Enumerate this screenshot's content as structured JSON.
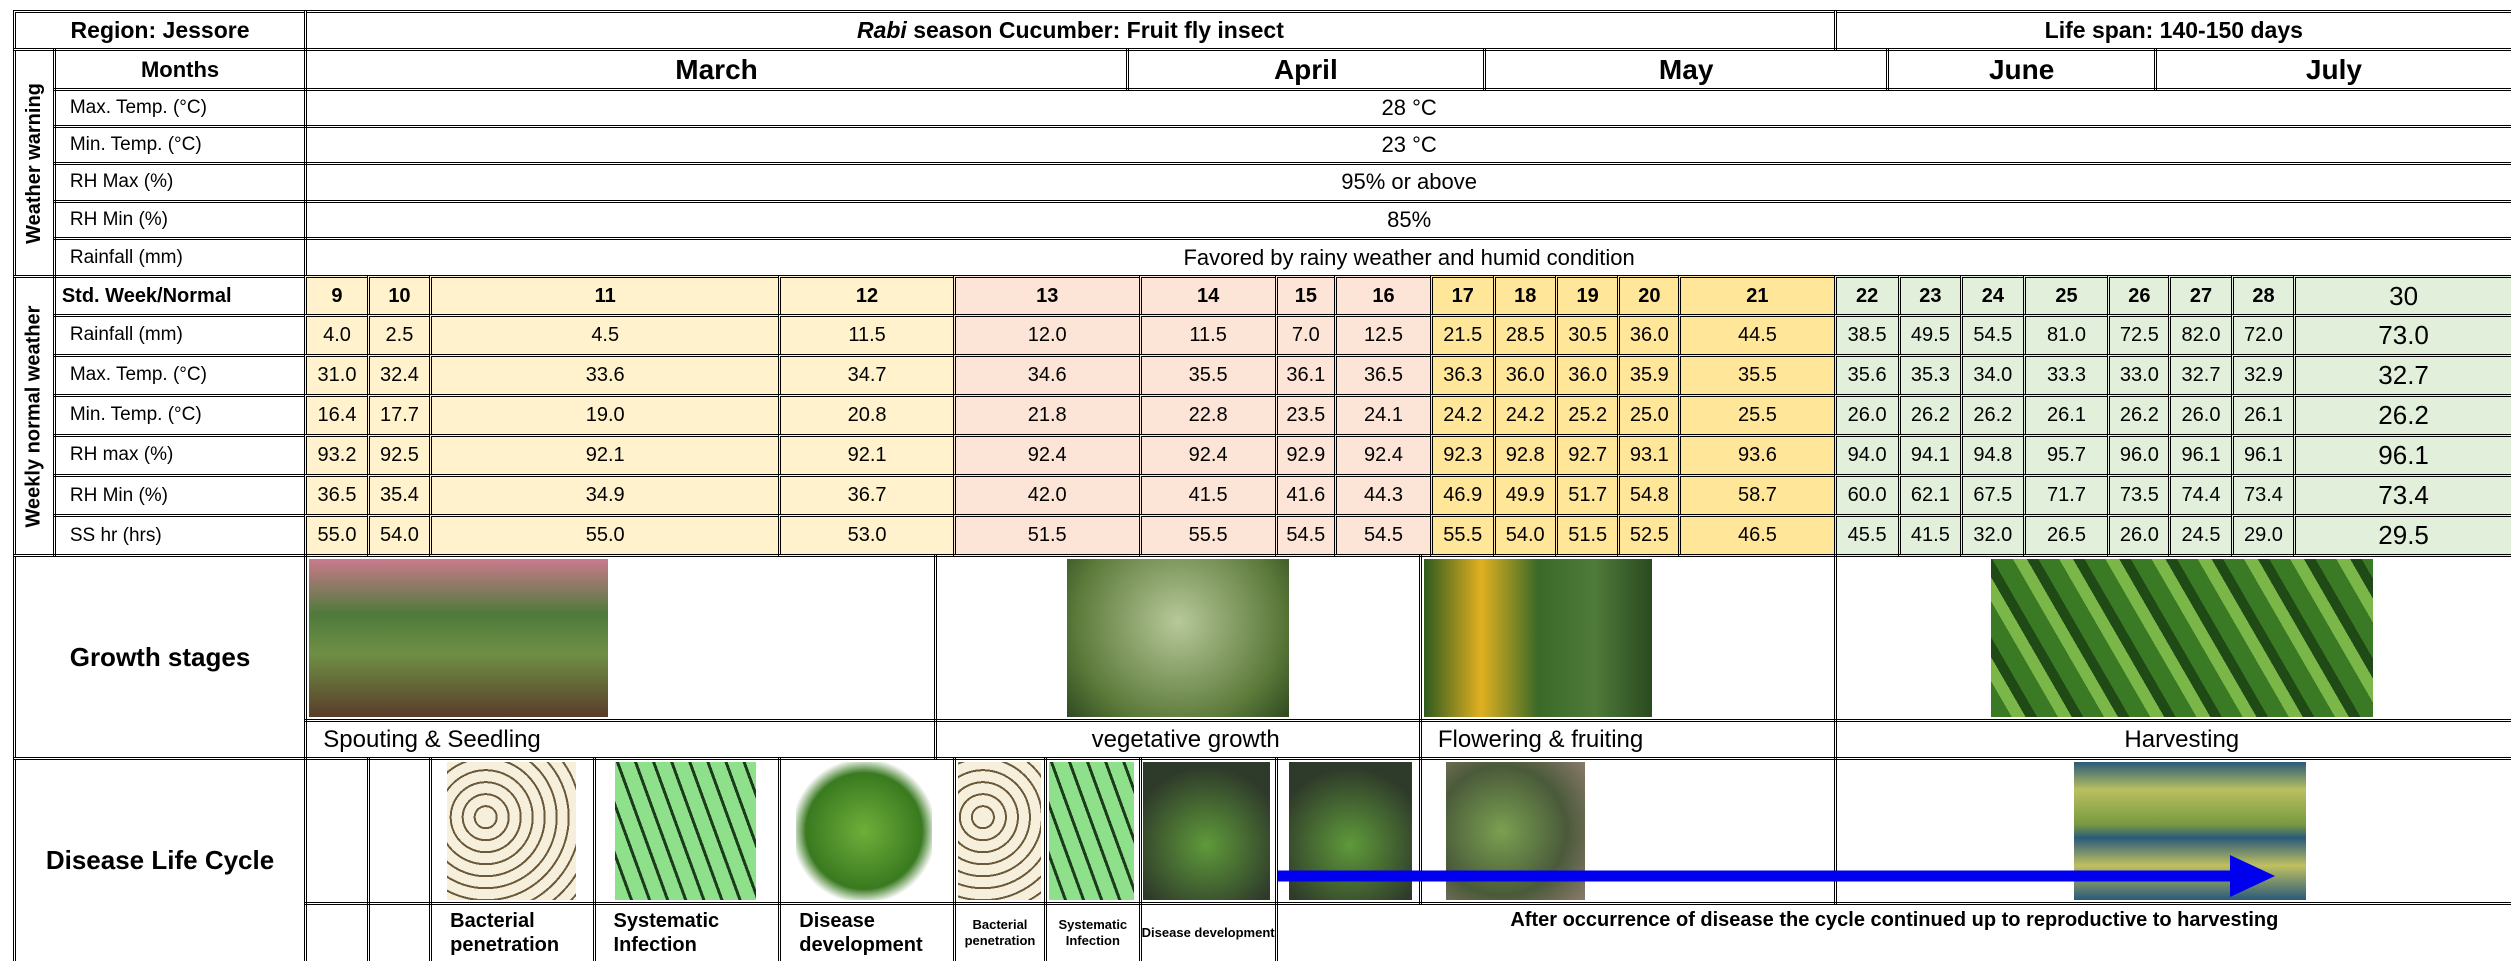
{
  "header": {
    "region": "Region:  Jessore",
    "title_italic": "Rabi",
    "title_rest": " season Cucumber: Fruit fly insect",
    "life_span": "Life span: 140-150 days"
  },
  "side_labels": {
    "weather_warning": "Weather warning",
    "weekly_normal": "Weekly normal weather"
  },
  "months": {
    "label": "Months",
    "names": [
      "March",
      "April",
      "May",
      "June",
      "July"
    ]
  },
  "warning": {
    "rows": [
      {
        "label": "Max. Temp. (°C)",
        "value": "28 °C"
      },
      {
        "label": "Min. Temp. (°C)",
        "value": "23 °C"
      },
      {
        "label": "RH Max (%)",
        "value": "95% or above"
      },
      {
        "label": "RH Min (%)",
        "value": "85%"
      },
      {
        "label": "Rainfall (mm)",
        "value": "Favored by rainy weather and humid condition"
      }
    ]
  },
  "weekly": {
    "header_label": "Std. Week/Normal",
    "weeks": [
      9,
      10,
      11,
      12,
      13,
      14,
      15,
      16,
      17,
      18,
      19,
      20,
      21,
      22,
      23,
      24,
      25,
      26,
      27,
      28,
      30
    ],
    "rows": [
      {
        "label": "Rainfall (mm)",
        "values": [
          "4.0",
          "2.5",
          "4.5",
          "11.5",
          "12.0",
          "11.5",
          "7.0",
          "12.5",
          "21.5",
          "28.5",
          "30.5",
          "36.0",
          "44.5",
          "38.5",
          "49.5",
          "54.5",
          "81.0",
          "72.5",
          "82.0",
          "72.0",
          "73.0"
        ]
      },
      {
        "label": "Max. Temp. (°C)",
        "values": [
          "31.0",
          "32.4",
          "33.6",
          "34.7",
          "34.6",
          "35.5",
          "36.1",
          "36.5",
          "36.3",
          "36.0",
          "36.0",
          "35.9",
          "35.5",
          "35.6",
          "35.3",
          "34.0",
          "33.3",
          "33.0",
          "32.7",
          "32.9",
          "32.7"
        ]
      },
      {
        "label": "Min. Temp. (°C)",
        "values": [
          "16.4",
          "17.7",
          "19.0",
          "20.8",
          "21.8",
          "22.8",
          "23.5",
          "24.1",
          "24.2",
          "24.2",
          "25.2",
          "25.0",
          "25.5",
          "26.0",
          "26.2",
          "26.2",
          "26.1",
          "26.2",
          "26.0",
          "26.1",
          "26.2"
        ]
      },
      {
        "label": "RH max (%)",
        "values": [
          "93.2",
          "92.5",
          "92.1",
          "92.1",
          "92.4",
          "92.4",
          "92.9",
          "92.4",
          "92.3",
          "92.8",
          "92.7",
          "93.1",
          "93.6",
          "94.0",
          "94.1",
          "94.8",
          "95.7",
          "96.0",
          "96.1",
          "96.1",
          "96.1"
        ]
      },
      {
        "label": "RH Min (%)",
        "values": [
          "36.5",
          "35.4",
          "34.9",
          "36.7",
          "42.0",
          "41.5",
          "41.6",
          "44.3",
          "46.9",
          "49.9",
          "51.7",
          "54.8",
          "58.7",
          "60.0",
          "62.1",
          "67.5",
          "71.7",
          "73.5",
          "74.4",
          "73.4",
          "73.4"
        ]
      },
      {
        "label": "SS hr (hrs)",
        "values": [
          "55.0",
          "54.0",
          "55.0",
          "53.0",
          "51.5",
          "55.5",
          "54.5",
          "54.5",
          "55.5",
          "54.0",
          "51.5",
          "52.5",
          "46.5",
          "45.5",
          "41.5",
          "32.0",
          "26.5",
          "26.0",
          "24.5",
          "29.0",
          "29.5"
        ]
      }
    ]
  },
  "growth": {
    "label": "Growth stages",
    "stages": [
      "Spouting & Seedling",
      "vegetative growth",
      "Flowering & fruiting",
      "Harvesting"
    ]
  },
  "disease": {
    "label": "Disease Life Cycle",
    "steps": [
      "Bacterial penetration",
      "Systematic Infection",
      "Disease development",
      "Bacterial penetration",
      "Systematic Infection",
      "Disease development"
    ],
    "note": "After occurrence of disease the cycle continued up to reproductive to harvesting"
  }
}
